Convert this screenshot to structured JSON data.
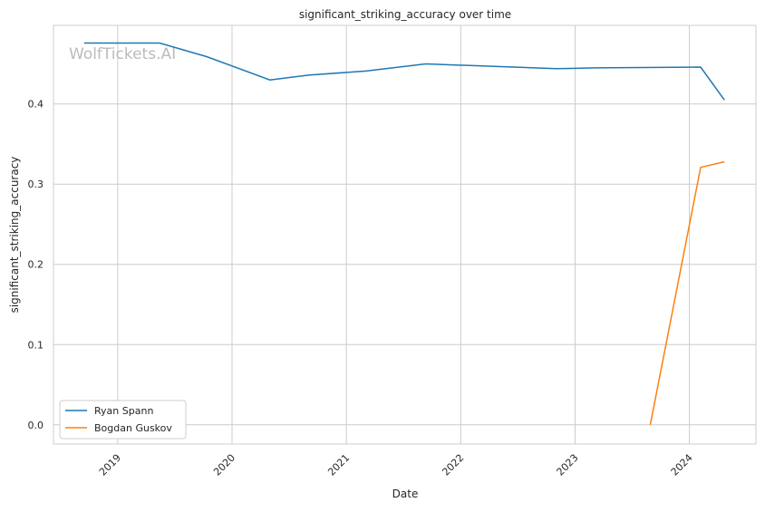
{
  "chart_data": {
    "type": "line",
    "title": "significant_striking_accuracy over time",
    "xlabel": "Date",
    "ylabel": "significant_striking_accuracy",
    "watermark": "WolfTickets.AI",
    "xticks": [
      "2019",
      "2020",
      "2021",
      "2022",
      "2023",
      "2024"
    ],
    "yticks": [
      "0.0",
      "0.1",
      "0.2",
      "0.3",
      "0.4"
    ],
    "xlim": [
      "2018-06-10",
      "2024-08-01"
    ],
    "ylim": [
      -0.024,
      0.498
    ],
    "grid": true,
    "legend_position": "lower-left",
    "series": [
      {
        "name": "Ryan Spann",
        "color": "#1f77b4",
        "x": [
          "2018-09-16",
          "2019-05-15",
          "2019-10-12",
          "2020-05-01",
          "2020-09-02",
          "2021-03-04",
          "2021-09-12",
          "2022-11-02",
          "2023-03-04",
          "2024-02-06",
          "2024-04-22"
        ],
        "y": [
          0.476,
          0.476,
          0.459,
          0.43,
          0.436,
          0.441,
          0.45,
          0.444,
          0.445,
          0.446,
          0.405
        ]
      },
      {
        "name": "Bogdan Guskov",
        "color": "#ff7f0e",
        "x": [
          "2023-08-29",
          "2024-02-06",
          "2024-04-22"
        ],
        "y": [
          0.0,
          0.321,
          0.328
        ]
      }
    ]
  }
}
